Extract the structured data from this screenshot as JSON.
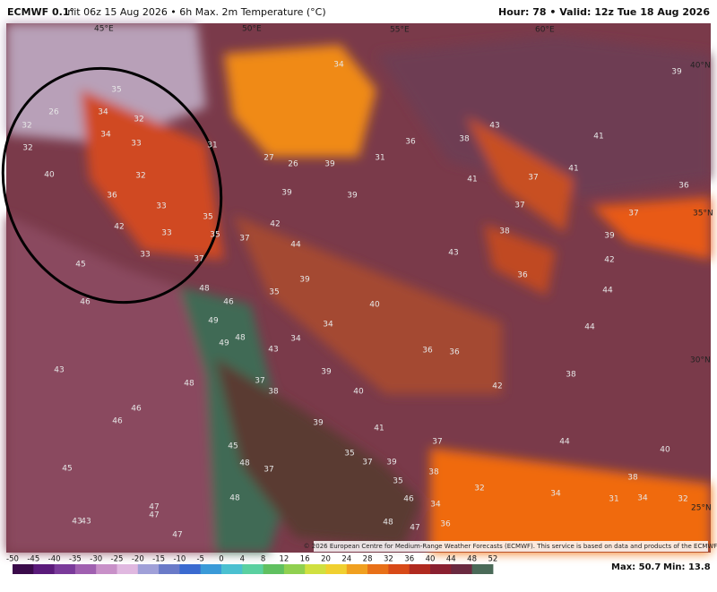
{
  "header": {
    "title": "ECMWF 0.1°",
    "subtitle": "Init 06z 15 Aug 2026 • 6h Max. 2m Temperature (°C)",
    "valid": "Hour: 78 • Valid: 12z Tue 18 Aug 2026"
  },
  "map": {
    "grid_labels": [
      "45°E",
      "50°E",
      "55°E",
      "60°E",
      "40°N",
      "35°N",
      "30°N",
      "25°N"
    ],
    "temperature_labels": [
      34,
      39,
      35,
      26,
      34,
      32,
      43,
      32,
      33,
      34,
      36,
      38,
      41,
      31,
      27,
      26,
      31,
      39,
      32,
      40,
      32,
      41,
      37,
      41,
      36,
      36,
      39,
      39,
      33,
      35,
      37,
      37,
      42,
      42,
      35,
      33,
      37,
      38,
      39,
      44,
      33,
      37,
      43,
      42,
      45,
      36,
      39,
      48,
      35,
      44,
      46,
      46,
      40,
      49,
      34,
      48,
      49,
      34,
      44,
      43,
      36,
      36,
      43,
      37,
      38,
      39,
      38,
      48,
      40,
      42,
      46,
      46,
      39,
      41,
      37,
      44,
      45,
      40,
      48,
      35,
      37,
      39,
      45,
      37,
      38,
      35,
      38,
      32,
      46,
      34,
      48,
      34,
      31,
      34,
      32,
      47,
      47,
      43,
      43,
      48,
      36,
      47,
      47
    ]
  },
  "colorbar": {
    "ticks": [
      -50,
      -45,
      -40,
      -35,
      -30,
      -25,
      -20,
      -15,
      -10,
      -5,
      0,
      4,
      8,
      12,
      16,
      20,
      24,
      28,
      32,
      36,
      40,
      44,
      48,
      52
    ]
  },
  "footer": {
    "credit": "© 2026 European Centre for Medium-Range Weather Forecasts (ECMWF). This service is based on data and products of the ECMWF.",
    "max": "Max: 50.7",
    "min": "Min: 13.8"
  }
}
